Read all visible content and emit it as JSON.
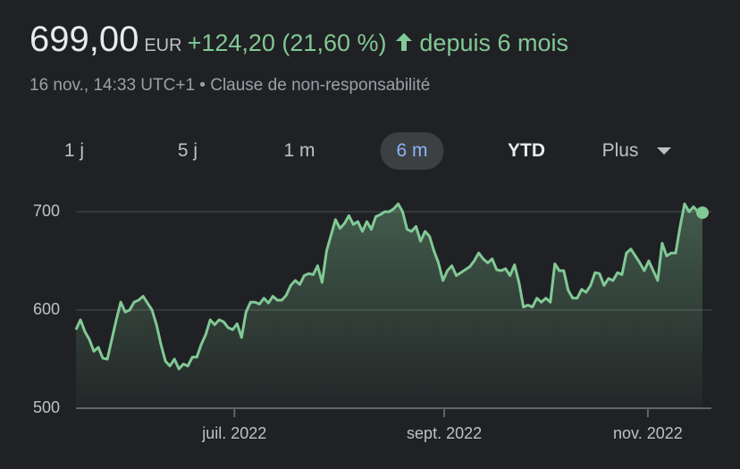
{
  "header": {
    "price": "699,00",
    "currency": "EUR",
    "change": "+124,20 (21,60 %)",
    "period": "depuis 6 mois",
    "timestamp": "16 nov., 14:33 UTC+1",
    "separator": "•",
    "disclaimer": "Clause de non-responsabilité"
  },
  "ranges": [
    {
      "label": "1 j"
    },
    {
      "label": "5 j"
    },
    {
      "label": "1 m"
    },
    {
      "label": "6 m",
      "selected": true
    },
    {
      "label": "YTD"
    },
    {
      "label": "Plus"
    }
  ],
  "chart_data": {
    "type": "area",
    "color": "#81c995",
    "grid": true,
    "values": [
      580,
      590,
      578,
      570,
      558,
      562,
      551,
      550,
      570,
      590,
      608,
      598,
      600,
      608,
      610,
      614,
      607,
      600,
      585,
      565,
      548,
      543,
      550,
      540,
      545,
      543,
      552,
      552,
      565,
      575,
      590,
      585,
      590,
      588,
      582,
      580,
      586,
      572,
      598,
      608,
      608,
      606,
      612,
      607,
      614,
      610,
      610,
      615,
      625,
      630,
      626,
      635,
      637,
      636,
      645,
      628,
      660,
      676,
      692,
      683,
      688,
      696,
      687,
      690,
      680,
      690,
      682,
      695,
      697,
      700,
      700,
      703,
      708,
      700,
      682,
      680,
      685,
      670,
      680,
      675,
      660,
      648,
      630,
      640,
      645,
      635,
      638,
      641,
      644,
      650,
      658,
      652,
      648,
      652,
      641,
      640,
      642,
      635,
      646,
      628,
      603,
      605,
      603,
      612,
      608,
      612,
      608,
      647,
      640,
      640,
      620,
      612,
      612,
      621,
      618,
      625,
      638,
      637,
      625,
      632,
      630,
      638,
      636,
      658,
      662,
      655,
      648,
      640,
      650,
      640,
      630,
      668,
      655,
      658,
      658,
      685,
      708,
      700,
      705,
      700,
      699
    ],
    "xlim": [
      0,
      140
    ],
    "xticks": [
      {
        "value": 35.4,
        "label": "juil. 2022"
      },
      {
        "value": 82.3,
        "label": "sept. 2022"
      },
      {
        "value": 127.8,
        "label": "nov. 2022"
      }
    ],
    "ylim": [
      500,
      733
    ],
    "yticks": [
      500,
      600,
      700
    ]
  }
}
